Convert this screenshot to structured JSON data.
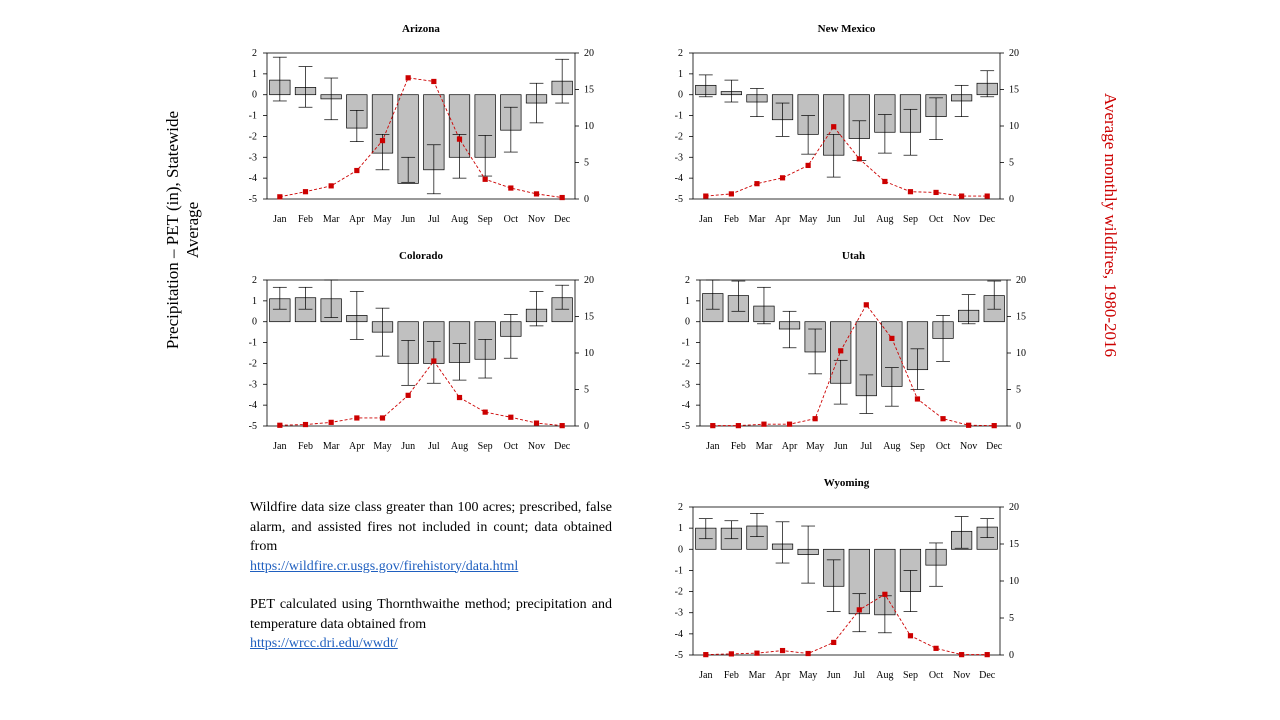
{
  "left_axis_label_line1": "Precipitation – PET (in), Statewide",
  "left_axis_label_line2": "Average",
  "right_axis_label": "Average monthly wildfires, 1980-2016",
  "note1": {
    "text": "Wildfire data size class greater than 100 acres; prescribed, false alarm, and assisted fires not included in count; data obtained from",
    "link": "https://wildfire.cr.usgs.gov/firehistory/data.html"
  },
  "note2": {
    "text": "PET calculated using Thornthwaithe method; precipitation and temperature data obtained from",
    "link": "https://wrcc.dri.edu/wwdt/"
  },
  "colors": {
    "bar_fill": "#c0c0c0",
    "fire_series": "#cc0000",
    "link": "#1f5fbf"
  },
  "chart_data": [
    {
      "type": "bar",
      "title": "Arizona",
      "categories": [
        "Jan",
        "Feb",
        "Mar",
        "Apr",
        "May",
        "Jun",
        "Jul",
        "Aug",
        "Sep",
        "Oct",
        "Nov",
        "Dec"
      ],
      "ylim_left": [
        -5,
        2
      ],
      "yticks_left": [
        2,
        1,
        0,
        -1,
        -2,
        -3,
        -4,
        -5
      ],
      "ylim_right": [
        0,
        20
      ],
      "yticks_right": [
        20,
        15,
        10,
        5,
        0
      ],
      "series": [
        {
          "axis": "left",
          "values": [
            0.7,
            0.35,
            -0.2,
            -1.6,
            -2.8,
            -4.25,
            -3.6,
            -3.0,
            -3.0,
            -1.7,
            -0.4,
            0.65
          ],
          "err_high": [
            1.8,
            1.35,
            0.8,
            -0.75,
            -1.9,
            -3.0,
            -2.4,
            -1.9,
            -1.95,
            -0.6,
            0.55,
            1.7
          ],
          "err_low": [
            -0.3,
            -0.6,
            -1.2,
            -2.25,
            -3.6,
            -4.2,
            -4.75,
            -4.0,
            -3.9,
            -2.75,
            -1.35,
            -0.4
          ]
        },
        {
          "name": "Average monthly wildfires, 1980-2016",
          "type": "line",
          "axis": "right",
          "values": [
            0.3,
            1.0,
            1.8,
            3.9,
            8.0,
            16.6,
            16.1,
            8.2,
            2.7,
            1.5,
            0.7,
            0.2
          ]
        }
      ]
    },
    {
      "type": "bar",
      "title": "New Mexico",
      "categories": [
        "Jan",
        "Feb",
        "Mar",
        "Apr",
        "May",
        "Jun",
        "Jul",
        "Aug",
        "Sep",
        "Oct",
        "Nov",
        "Dec"
      ],
      "ylim_left": [
        -5,
        2
      ],
      "yticks_left": [
        2,
        1,
        0,
        -1,
        -2,
        -3,
        -4,
        -5
      ],
      "ylim_right": [
        0,
        20
      ],
      "yticks_right": [
        20,
        15,
        10,
        5,
        0
      ],
      "series": [
        {
          "axis": "left",
          "values": [
            0.45,
            0.15,
            -0.35,
            -1.2,
            -1.9,
            -2.9,
            -2.1,
            -1.8,
            -1.8,
            -1.05,
            -0.3,
            0.55
          ],
          "err_high": [
            0.95,
            0.7,
            0.3,
            -0.4,
            -1.0,
            -1.9,
            -1.25,
            -0.95,
            -0.7,
            -0.15,
            0.45,
            1.15
          ],
          "err_low": [
            -0.1,
            -0.35,
            -1.05,
            -2.0,
            -2.85,
            -3.95,
            -3.15,
            -2.8,
            -2.9,
            -2.15,
            -1.05,
            -0.1
          ]
        },
        {
          "name": "Average monthly wildfires, 1980-2016",
          "type": "line",
          "axis": "right",
          "values": [
            0.4,
            0.7,
            2.1,
            2.9,
            4.6,
            9.9,
            5.5,
            2.4,
            1.0,
            0.9,
            0.4,
            0.4
          ]
        }
      ]
    },
    {
      "type": "bar",
      "title": "Colorado",
      "categories": [
        "Jan",
        "Feb",
        "Mar",
        "Apr",
        "May",
        "Jun",
        "Jul",
        "Aug",
        "Sep",
        "Oct",
        "Nov",
        "Dec"
      ],
      "ylim_left": [
        -5,
        2
      ],
      "yticks_left": [
        2,
        1,
        0,
        -1,
        -2,
        -3,
        -4,
        -5
      ],
      "ylim_right": [
        0,
        20
      ],
      "yticks_right": [
        20,
        15,
        10,
        5,
        0
      ],
      "series": [
        {
          "axis": "left",
          "values": [
            1.1,
            1.15,
            1.1,
            0.3,
            -0.5,
            -2.0,
            -2.0,
            -1.95,
            -1.8,
            -0.7,
            0.6,
            1.15
          ],
          "err_high": [
            1.65,
            1.65,
            2.0,
            1.45,
            0.65,
            -0.9,
            -0.95,
            -1.05,
            -0.85,
            0.35,
            1.45,
            1.75
          ],
          "err_low": [
            0.6,
            0.6,
            0.2,
            -0.85,
            -1.65,
            -3.05,
            -2.95,
            -2.8,
            -2.7,
            -1.75,
            -0.2,
            0.6
          ]
        },
        {
          "name": "Average monthly wildfires, 1980-2016",
          "type": "line",
          "axis": "right",
          "values": [
            0.1,
            0.2,
            0.5,
            1.1,
            1.1,
            4.2,
            8.9,
            3.9,
            1.9,
            1.2,
            0.4,
            0.05
          ]
        }
      ]
    },
    {
      "type": "bar",
      "title": "Utah",
      "categories": [
        "Jan",
        "Feb",
        "Mar",
        "Apr",
        "May",
        "Jun",
        "Jul",
        "Aug",
        "Sep",
        "Oct",
        "Nov",
        "Dec"
      ],
      "ylim_left": [
        -5,
        2
      ],
      "yticks_left": [
        2,
        1,
        0,
        -1,
        -2,
        -3,
        -4,
        -5
      ],
      "ylim_right": [
        0,
        20
      ],
      "yticks_right": [
        20,
        15,
        10,
        5,
        0
      ],
      "series": [
        {
          "axis": "left",
          "values": [
            1.35,
            1.25,
            0.75,
            -0.35,
            -1.45,
            -2.95,
            -3.55,
            -3.1,
            -2.3,
            -0.8,
            0.55,
            1.25
          ],
          "err_high": [
            2.0,
            1.95,
            1.65,
            0.5,
            -0.35,
            -1.85,
            -2.55,
            -2.2,
            -1.3,
            0.3,
            1.3,
            1.95
          ],
          "err_low": [
            0.6,
            0.5,
            -0.1,
            -1.25,
            -2.5,
            -3.95,
            -4.4,
            -4.05,
            -3.25,
            -1.9,
            -0.1,
            0.6
          ]
        },
        {
          "name": "Average monthly wildfires, 1980-2016",
          "type": "line",
          "axis": "right",
          "values": [
            0.05,
            0.05,
            0.25,
            0.25,
            1.0,
            10.3,
            16.6,
            12.0,
            3.7,
            1.0,
            0.1,
            0.05
          ]
        }
      ]
    },
    {
      "type": "bar",
      "title": "Wyoming",
      "categories": [
        "Jan",
        "Feb",
        "Mar",
        "Apr",
        "May",
        "Jun",
        "Jul",
        "Aug",
        "Sep",
        "Oct",
        "Nov",
        "Dec"
      ],
      "ylim_left": [
        -5,
        2
      ],
      "yticks_left": [
        2,
        1,
        0,
        -1,
        -2,
        -3,
        -4,
        -5
      ],
      "ylim_right": [
        0,
        20
      ],
      "yticks_right": [
        20,
        15,
        10,
        5,
        0
      ],
      "series": [
        {
          "axis": "left",
          "values": [
            1.0,
            1.0,
            1.1,
            0.25,
            -0.25,
            -1.75,
            -3.05,
            -3.1,
            -2.0,
            -0.75,
            0.85,
            1.05
          ],
          "err_high": [
            1.45,
            1.35,
            1.7,
            1.3,
            1.1,
            -0.5,
            -2.1,
            -2.2,
            -1.0,
            0.3,
            1.55,
            1.45
          ],
          "err_low": [
            0.5,
            0.5,
            0.6,
            -0.65,
            -1.6,
            -2.95,
            -3.9,
            -3.95,
            -2.95,
            -1.75,
            0.05,
            0.55
          ]
        },
        {
          "name": "Average monthly wildfires, 1980-2016",
          "type": "line",
          "axis": "right",
          "values": [
            0.05,
            0.15,
            0.25,
            0.6,
            0.2,
            1.7,
            6.1,
            8.2,
            2.6,
            0.9,
            0.05,
            0.05
          ]
        }
      ]
    }
  ]
}
